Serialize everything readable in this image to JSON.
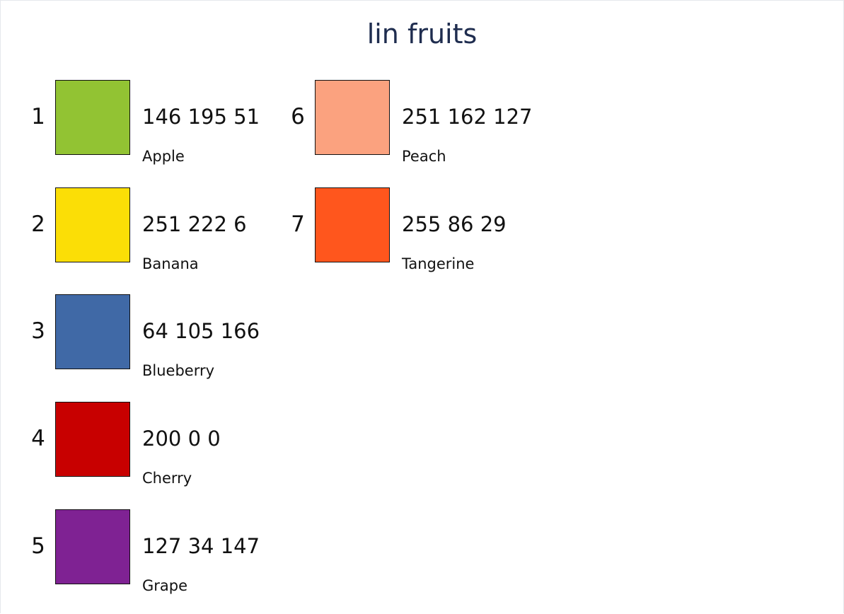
{
  "title": "lin fruits",
  "swatches": [
    {
      "index": "1",
      "rgb": "146 195 51",
      "name": "Apple",
      "color": "#92c333"
    },
    {
      "index": "2",
      "rgb": "251 222 6",
      "name": "Banana",
      "color": "#fbde06"
    },
    {
      "index": "3",
      "rgb": "64 105 166",
      "name": "Blueberry",
      "color": "#4069a6"
    },
    {
      "index": "4",
      "rgb": "200 0 0",
      "name": "Cherry",
      "color": "#c80000"
    },
    {
      "index": "5",
      "rgb": "127 34 147",
      "name": "Grape",
      "color": "#7f2293"
    },
    {
      "index": "6",
      "rgb": "251 162 127",
      "name": "Peach",
      "color": "#fba27f"
    },
    {
      "index": "7",
      "rgb": "255 86 29",
      "name": "Tangerine",
      "color": "#ff561d"
    }
  ]
}
